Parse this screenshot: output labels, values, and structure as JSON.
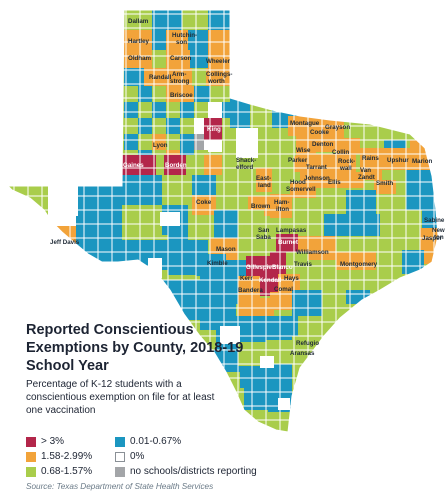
{
  "title": "Reported Conscientious Exemptions by County, 2018-19 School Year",
  "subtitle": "Percentage of K-12 students with a conscientious exemption on file for at least one vaccination",
  "source": "Source: Texas Department of State Health Services",
  "colors": {
    "gt3": "#b3264a",
    "mid_high": "#f2a33a",
    "mid": "#a9cd4b",
    "low": "#1b96c0",
    "zero": "#ffffff",
    "none": "#a3a5a8",
    "border": "#ffffff"
  },
  "legend": [
    {
      "key": "gt3",
      "label": "> 3%"
    },
    {
      "key": "low",
      "label": "0.01-0.67%"
    },
    {
      "key": "mid_high",
      "label": "1.58-2.99%"
    },
    {
      "key": "zero",
      "label": "0%"
    },
    {
      "key": "mid",
      "label": "0.68-1.57%"
    },
    {
      "key": "none",
      "label": "no schools/districts reporting"
    }
  ],
  "county_labels": [
    "Dallam",
    "Hartley",
    "Hutchin-son",
    "Oldham",
    "Carson",
    "Wheeler",
    "Randall",
    "Arm-strong",
    "Collings-worth",
    "Briscoe",
    "King",
    "Lyon",
    "Gaines",
    "Borden",
    "Montague",
    "Grayson",
    "Cooke",
    "Denton",
    "Collin",
    "Wise",
    "Parker",
    "Tarrant",
    "Rock-wall",
    "Rains",
    "Upshur",
    "Marion",
    "Van Zandt",
    "Johnson",
    "Hood",
    "Somervell",
    "Ellis",
    "Smith",
    "Shack-elford",
    "East-land",
    "Brown",
    "Ham-ilton",
    "Coke",
    "Jeff Davis",
    "San Saba",
    "Lampasas",
    "Burnet",
    "Williamson",
    "Mason",
    "Kimble",
    "Travis",
    "Gillespie",
    "Blanco",
    "Kerr",
    "Kendall",
    "Hays",
    "Comal",
    "Bandera",
    "Montgomery",
    "Sabine",
    "Jasper",
    "New-ton",
    "Refugio",
    "Aransas"
  ]
}
